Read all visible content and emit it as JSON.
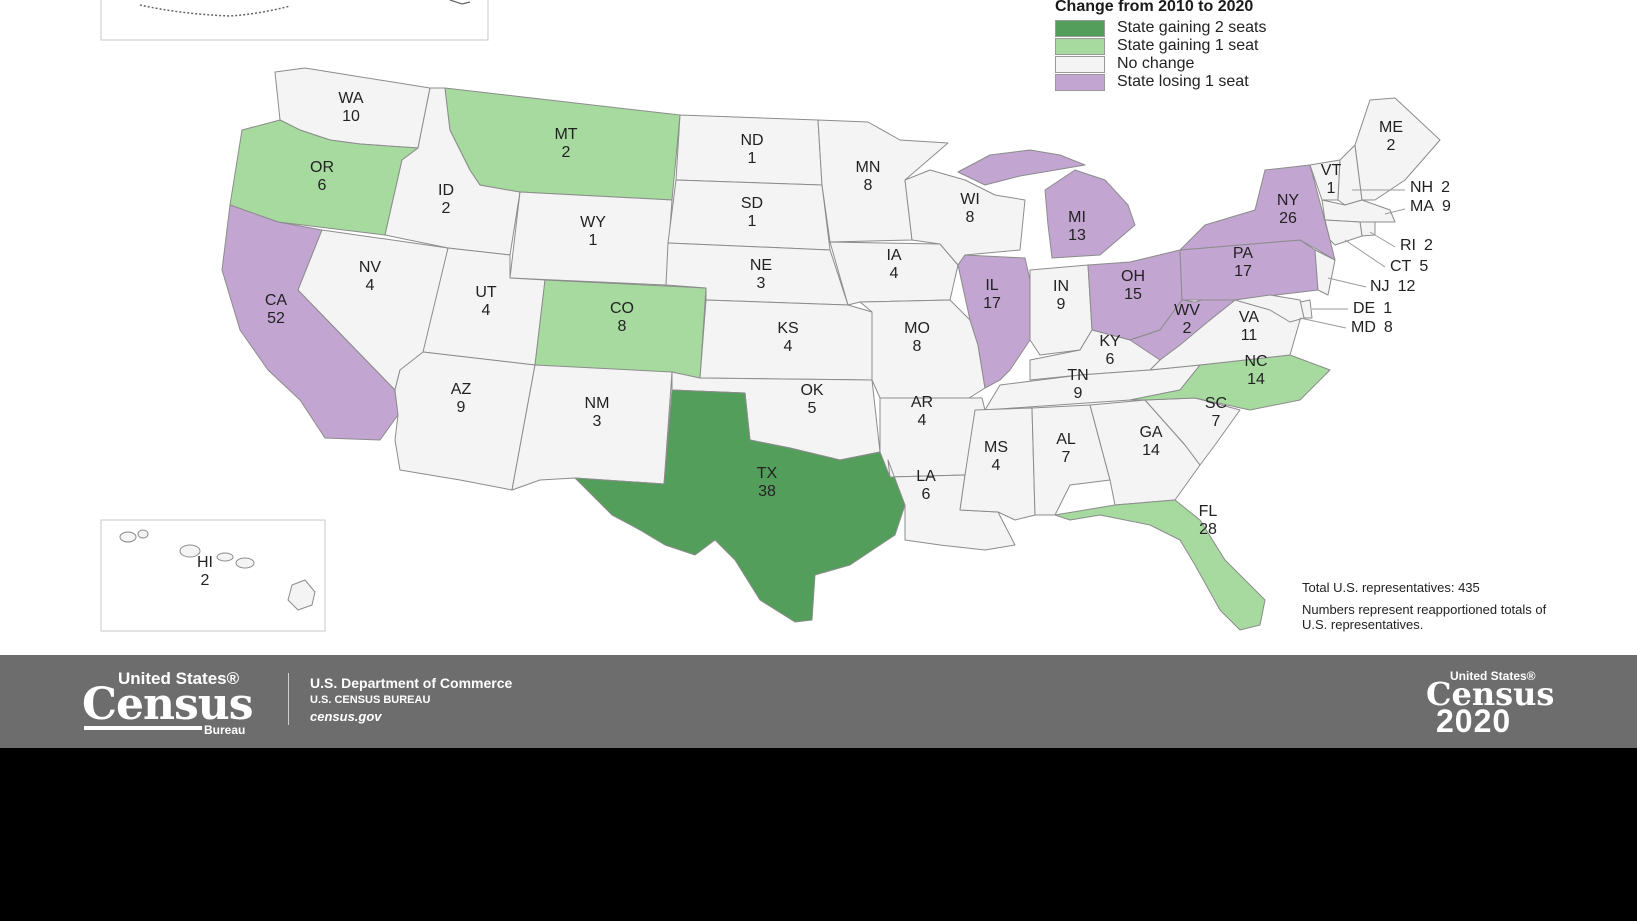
{
  "legend": {
    "title": "Change from 2010 to 2020",
    "items": [
      {
        "key": "gain2",
        "label": "State gaining 2 seats",
        "color": "#529e5a"
      },
      {
        "key": "gain1",
        "label": "State gaining 1 seat",
        "color": "#a6da9f"
      },
      {
        "key": "none",
        "label": "No change",
        "color": "#f4f4f4"
      },
      {
        "key": "lose1",
        "label": "State losing 1 seat",
        "color": "#c2a5d1"
      }
    ]
  },
  "states": [
    {
      "abbr": "WA",
      "seats": "10",
      "change": "none"
    },
    {
      "abbr": "OR",
      "seats": "6",
      "change": "gain1"
    },
    {
      "abbr": "CA",
      "seats": "52",
      "change": "lose1"
    },
    {
      "abbr": "NV",
      "seats": "4",
      "change": "none"
    },
    {
      "abbr": "ID",
      "seats": "2",
      "change": "none"
    },
    {
      "abbr": "MT",
      "seats": "2",
      "change": "gain1"
    },
    {
      "abbr": "WY",
      "seats": "1",
      "change": "none"
    },
    {
      "abbr": "UT",
      "seats": "4",
      "change": "none"
    },
    {
      "abbr": "CO",
      "seats": "8",
      "change": "gain1"
    },
    {
      "abbr": "AZ",
      "seats": "9",
      "change": "none"
    },
    {
      "abbr": "NM",
      "seats": "3",
      "change": "none"
    },
    {
      "abbr": "ND",
      "seats": "1",
      "change": "none"
    },
    {
      "abbr": "SD",
      "seats": "1",
      "change": "none"
    },
    {
      "abbr": "NE",
      "seats": "3",
      "change": "none"
    },
    {
      "abbr": "KS",
      "seats": "4",
      "change": "none"
    },
    {
      "abbr": "OK",
      "seats": "5",
      "change": "none"
    },
    {
      "abbr": "TX",
      "seats": "38",
      "change": "gain2"
    },
    {
      "abbr": "MN",
      "seats": "8",
      "change": "none"
    },
    {
      "abbr": "IA",
      "seats": "4",
      "change": "none"
    },
    {
      "abbr": "MO",
      "seats": "8",
      "change": "none"
    },
    {
      "abbr": "AR",
      "seats": "4",
      "change": "none"
    },
    {
      "abbr": "LA",
      "seats": "6",
      "change": "none"
    },
    {
      "abbr": "WI",
      "seats": "8",
      "change": "none"
    },
    {
      "abbr": "IL",
      "seats": "17",
      "change": "lose1"
    },
    {
      "abbr": "MI",
      "seats": "13",
      "change": "lose1"
    },
    {
      "abbr": "IN",
      "seats": "9",
      "change": "none"
    },
    {
      "abbr": "OH",
      "seats": "15",
      "change": "lose1"
    },
    {
      "abbr": "KY",
      "seats": "6",
      "change": "none"
    },
    {
      "abbr": "TN",
      "seats": "9",
      "change": "none"
    },
    {
      "abbr": "MS",
      "seats": "4",
      "change": "none"
    },
    {
      "abbr": "AL",
      "seats": "7",
      "change": "none"
    },
    {
      "abbr": "GA",
      "seats": "14",
      "change": "none"
    },
    {
      "abbr": "FL",
      "seats": "28",
      "change": "gain1"
    },
    {
      "abbr": "SC",
      "seats": "7",
      "change": "none"
    },
    {
      "abbr": "NC",
      "seats": "14",
      "change": "gain1"
    },
    {
      "abbr": "VA",
      "seats": "11",
      "change": "none"
    },
    {
      "abbr": "WV",
      "seats": "2",
      "change": "lose1"
    },
    {
      "abbr": "PA",
      "seats": "17",
      "change": "lose1"
    },
    {
      "abbr": "NY",
      "seats": "26",
      "change": "lose1"
    },
    {
      "abbr": "VT",
      "seats": "1",
      "change": "none"
    },
    {
      "abbr": "ME",
      "seats": "2",
      "change": "none"
    },
    {
      "abbr": "HI",
      "seats": "2",
      "change": "none"
    }
  ],
  "small_states": [
    {
      "abbr": "NH",
      "seats": "2",
      "change": "none"
    },
    {
      "abbr": "MA",
      "seats": "9",
      "change": "none"
    },
    {
      "abbr": "RI",
      "seats": "2",
      "change": "none"
    },
    {
      "abbr": "CT",
      "seats": "5",
      "change": "none"
    },
    {
      "abbr": "NJ",
      "seats": "12",
      "change": "none"
    },
    {
      "abbr": "DE",
      "seats": "1",
      "change": "none"
    },
    {
      "abbr": "MD",
      "seats": "8",
      "change": "none"
    }
  ],
  "notes": {
    "total": "Total U.S. representatives: 435",
    "numbers": "Numbers represent reapportioned totals of U.S. representatives."
  },
  "footer": {
    "logo_top": "United States®",
    "logo_main": "Census",
    "logo_bottom": "Bureau",
    "dept_name": "U.S. Department of Commerce",
    "dept_sub": "U.S. CENSUS BUREAU",
    "website": "census.gov",
    "c2020_top": "United States®",
    "c2020_main": "Census",
    "c2020_year": "2020"
  }
}
